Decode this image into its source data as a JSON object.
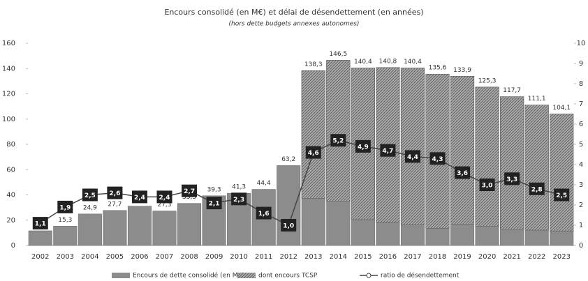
{
  "chart_data": {
    "type": "bar",
    "title": "Encours consolidé (en M€) et délai de désendettement (en années)",
    "subtitle": "(hors dette budgets annexes autonomes)",
    "categories": [
      "2002",
      "2003",
      "2004",
      "2005",
      "2006",
      "2007",
      "2008",
      "2009",
      "2010",
      "2011",
      "2012",
      "2013",
      "2014",
      "2015",
      "2016",
      "2017",
      "2018",
      "2019",
      "2020",
      "2021",
      "2022",
      "2023"
    ],
    "series": [
      {
        "name": "Encours de dette consolidé (en M€)",
        "color": "#8c8c8c",
        "values": [
          11.6,
          15.3,
          24.9,
          27.7,
          31.1,
          27.3,
          33.3,
          39.3,
          41.3,
          44.4,
          63.2,
          138.3,
          146.5,
          140.4,
          140.8,
          140.4,
          135.6,
          133.9,
          125.3,
          117.7,
          111.1,
          104.1
        ],
        "value_labels": [
          "11,6",
          "15,3",
          "24,9",
          "27,7",
          "31,1",
          "27,3",
          "33,3",
          "39,3",
          "41,3",
          "44,4",
          "63,2",
          "138,3",
          "146,5",
          "140,4",
          "140,8",
          "140,4",
          "135,6",
          "133,9",
          "125,3",
          "117,7",
          "111,1",
          "104,1"
        ]
      },
      {
        "name": "dont encours TCSP",
        "color": "#6e6e6e",
        "values": [
          null,
          null,
          null,
          null,
          null,
          null,
          null,
          null,
          null,
          null,
          null,
          101,
          111.5,
          120,
          123,
          124,
          122,
          117,
          110,
          105,
          99,
          93
        ]
      },
      {
        "name": "ratio de désendettement",
        "color": "#444444",
        "axis": "y2",
        "values": [
          1.1,
          1.9,
          2.5,
          2.6,
          2.4,
          2.4,
          2.7,
          2.1,
          2.3,
          1.6,
          1.0,
          4.6,
          5.2,
          4.9,
          4.7,
          4.4,
          4.3,
          3.6,
          3.0,
          3.3,
          2.8,
          2.5
        ],
        "value_labels": [
          "1,1",
          "1,9",
          "2,5",
          "2,6",
          "2,4",
          "2,4",
          "2,7",
          "2,1",
          "2,3",
          "1,6",
          "1,0",
          "4,6",
          "5,2",
          "4,9",
          "4,7",
          "4,4",
          "4,3",
          "3,6",
          "3,0",
          "3,3",
          "2,8",
          "2,5"
        ]
      }
    ],
    "ylim": [
      0,
      160
    ],
    "yticks": [
      0,
      20,
      40,
      60,
      80,
      100,
      120,
      140,
      160
    ],
    "y2lim": [
      0,
      10
    ],
    "y2ticks": [
      0,
      1,
      2,
      3,
      4,
      5,
      6,
      7,
      8,
      9,
      10
    ],
    "grid": false,
    "legend": "bottom"
  }
}
